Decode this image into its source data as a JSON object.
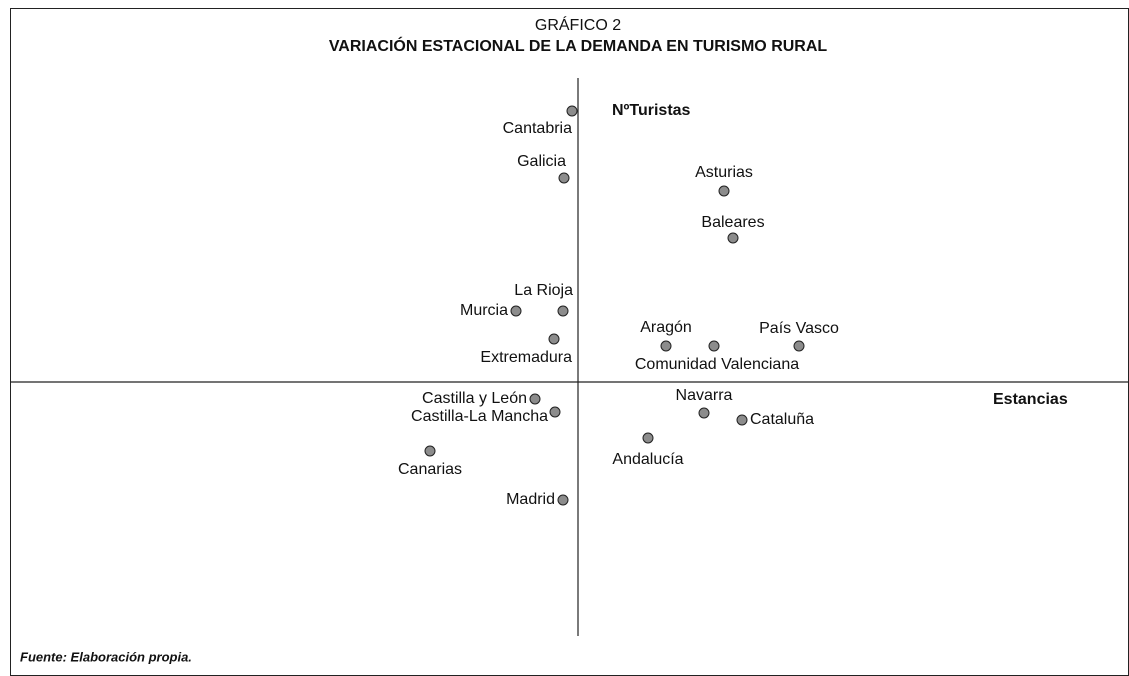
{
  "chart_data": {
    "type": "scatter",
    "title": "GRÁFICO 2",
    "subtitle": "VARIACIÓN ESTACIONAL DE LA DEMANDA EN TURISMO RURAL",
    "x_label": "Estancias",
    "y_label": "NºTuristas",
    "source": "Fuente: Elaboración propia.",
    "color": "#8c8c8c",
    "xlim": [
      -56.8,
      55.2
    ],
    "ylim": [
      -25.4,
      30.4
    ],
    "labels": [
      "Cantabria",
      "Galicia",
      "Asturias",
      "Baleares",
      "La Rioja",
      "Murcia",
      "Extremadura",
      "Aragón",
      "Comunidad Valenciana",
      "País Vasco",
      "Castilla y León",
      "Castilla-La Mancha",
      "Canarias",
      "Navarra",
      "Cataluña",
      "Andalucía",
      "Madrid"
    ],
    "x": [
      -0.6,
      -1.4,
      14.6,
      15.5,
      -1.5,
      -6.2,
      -2.4,
      8.8,
      13.6,
      22.1,
      -4.3,
      -2.3,
      -14.8,
      12.6,
      16.4,
      7.0,
      -1.5
    ],
    "values": [
      27.1,
      20.4,
      19.1,
      14.4,
      7.1,
      7.1,
      4.3,
      3.6,
      3.6,
      3.6,
      -1.7,
      -3.0,
      -6.9,
      -3.1,
      -3.8,
      -5.6,
      -11.8
    ]
  }
}
